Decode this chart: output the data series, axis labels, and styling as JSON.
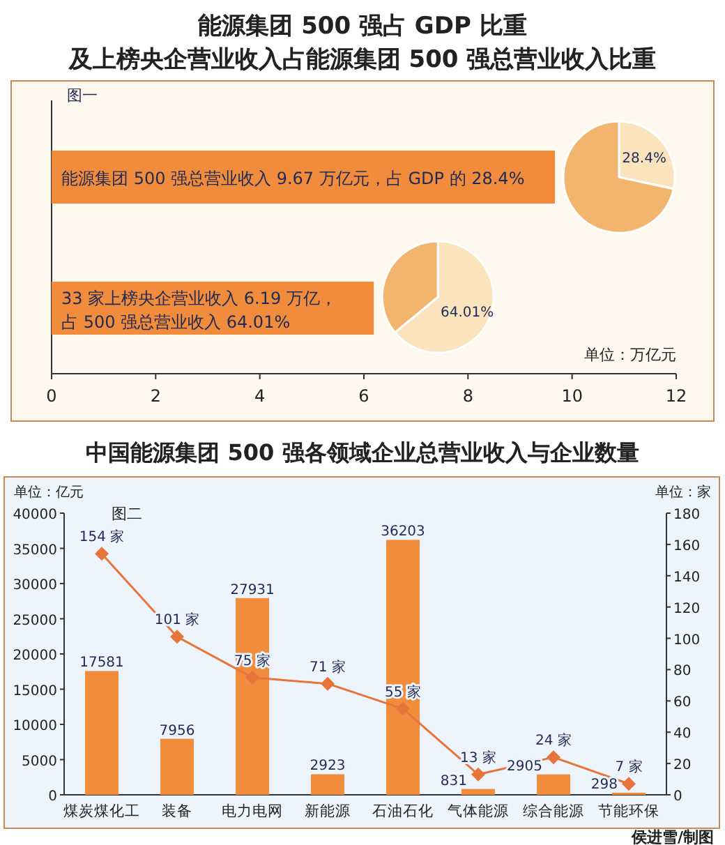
{
  "chart_data": [
    {
      "type": "bar",
      "orientation": "horizontal",
      "title": "能源集团 500 强占 GDP 比重",
      "subtitle": "及上榜央企营业收入占能源集团 500 强总营业收入比重",
      "categories": [
        null,
        null
      ],
      "values": [
        9.67,
        6.19
      ],
      "color": "#f08c3c",
      "xlim": [
        0,
        12
      ],
      "xticks": [
        0,
        2,
        4,
        6,
        8,
        10,
        12
      ],
      "xlabel": "单位：万亿元",
      "annotations": [
        "图一",
        "能源集团 500 强总营业收入 9.67 万亿元，占 GDP 的 28.4%",
        "33 家上榜央企营业收入 6.19 万亿，",
        "占 500 强总营业收入 64.01%"
      ]
    },
    {
      "type": "pie",
      "categories": [
        null,
        null
      ],
      "values": [
        28.4,
        71.6
      ],
      "colors": [
        "#fbe3bd",
        "#f2b56e"
      ],
      "value_labels": [
        "28.4%",
        null
      ]
    },
    {
      "type": "pie",
      "categories": [
        null,
        null
      ],
      "values": [
        64.01,
        35.99
      ],
      "colors": [
        "#fbe3bd",
        "#f2b56e"
      ],
      "value_labels": [
        "64.01%",
        null
      ]
    },
    {
      "type": "bar",
      "title": "中国能源集团 500 强各领域企业总营业收入与企业数量",
      "ylabel": "单位：亿元",
      "y2label": "单位：家",
      "categories": [
        "煤炭煤化工",
        "装备",
        "电力电网",
        "新能源",
        "石油石化",
        "气体能源",
        "综合能源",
        "节能环保"
      ],
      "ylim": [
        0,
        40000
      ],
      "yticks": [
        0,
        5000,
        10000,
        15000,
        20000,
        25000,
        30000,
        35000,
        40000
      ],
      "y2lim": [
        0,
        180
      ],
      "y2ticks": [
        0,
        20,
        40,
        60,
        80,
        100,
        120,
        140,
        160,
        180
      ],
      "series": [
        {
          "type": "bar",
          "color": "#f08c3c",
          "values": [
            17581,
            7956,
            27931,
            2923,
            36203,
            831,
            2905,
            298
          ],
          "value_labels": [
            "17581",
            "7956",
            "27931",
            "2923",
            "36203",
            "831",
            "2905",
            "298"
          ]
        },
        {
          "type": "line",
          "axis": "y2",
          "marker": "diamond",
          "color": "#e8743b",
          "values": [
            154,
            101,
            75,
            71,
            55,
            13,
            24,
            7
          ],
          "value_labels": [
            "154 家",
            "101 家",
            "75 家",
            "71 家",
            "55 家",
            "13 家",
            "24 家",
            "7 家"
          ]
        }
      ],
      "annotations": [
        "图二",
        "侯进雪/制图"
      ]
    }
  ]
}
